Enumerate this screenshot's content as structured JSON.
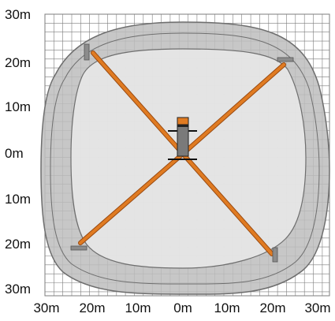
{
  "diagram": {
    "y_axis_labels": [
      "30m",
      "20m",
      "10m",
      "0m",
      "10m",
      "20m",
      "30m"
    ],
    "x_axis_labels": [
      "30m",
      "20m",
      "10m",
      "0m",
      "10m",
      "20m",
      "30m"
    ],
    "grid": true,
    "colors": {
      "grid": "#7d7d7d",
      "outer_zone": "#bdbdbd",
      "inner_zone": "#e8e8e8",
      "outline": "#6e6e6e",
      "outrigger": "#e07b22",
      "outrigger_edge": "#9a4a10",
      "machine_body": "#7a7a7a",
      "cab": "#e07b22"
    },
    "icons": [
      "outrigger-pad-icon",
      "machine-icon"
    ]
  }
}
